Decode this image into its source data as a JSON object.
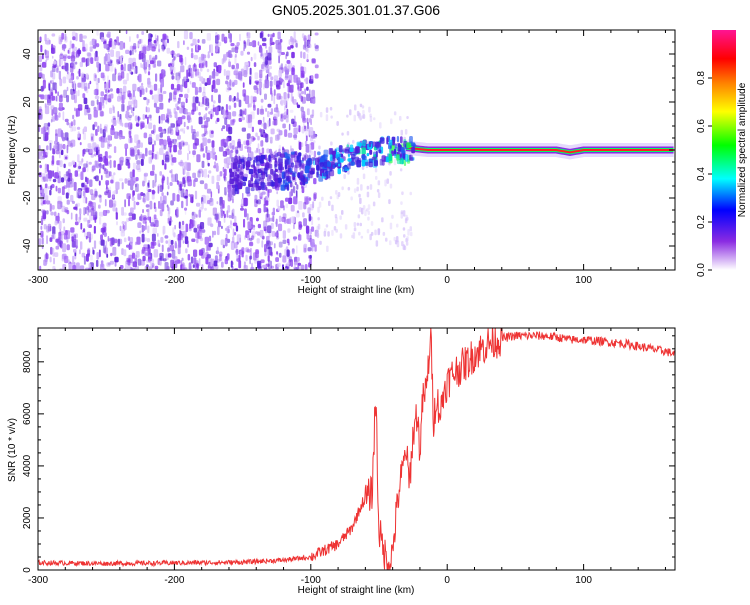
{
  "page": {
    "title": "GN05.2025.301.01.37.G06"
  },
  "chart_data": [
    {
      "type": "heatmap",
      "title": "GN05.2025.301.01.37.G06",
      "xlabel": "Height of straight line (km)",
      "ylabel": "Frequency (Hz)",
      "xlim": [
        -300,
        167
      ],
      "ylim": [
        -50,
        50
      ],
      "xticks": [
        -300,
        -200,
        -100,
        0,
        100
      ],
      "yticks": [
        -40,
        -20,
        0,
        20,
        40
      ],
      "colorbar": {
        "label": "Normalized spectral amplitude",
        "range": [
          0,
          1
        ],
        "ticks": [
          0.0,
          0.2,
          0.4,
          0.6,
          0.8
        ],
        "stops": [
          "#ffffff",
          "#8a2be2",
          "#0000ff",
          "#00ffff",
          "#00ff00",
          "#ffff00",
          "#ff8000",
          "#ff0000",
          "#ff1493"
        ]
      },
      "ridge": {
        "x": [
          -300,
          -150,
          -120,
          -100,
          -80,
          -60,
          -45,
          -30,
          -15,
          0,
          50,
          80,
          90,
          100,
          167
        ],
        "y": [
          -10,
          -9,
          -8,
          -6,
          -3,
          0,
          1,
          1,
          0,
          0,
          0,
          0,
          -1,
          0,
          0
        ]
      },
      "noise_region": {
        "x_start": -300,
        "x_end": -97
      }
    },
    {
      "type": "line",
      "xlabel": "Height of straight line (km)",
      "ylabel": "SNR (10 * v/v)",
      "xlim": [
        -300,
        167
      ],
      "ylim": [
        0,
        9300
      ],
      "xticks": [
        -300,
        -200,
        -100,
        0,
        100
      ],
      "yticks": [
        0,
        2000,
        4000,
        6000,
        8000
      ],
      "color": "#ee3333",
      "series": [
        {
          "x": [
            -300,
            -250,
            -200,
            -150,
            -120,
            -100,
            -90,
            -80,
            -70,
            -62,
            -58,
            -55,
            -53,
            -52,
            -51,
            -50,
            -48,
            -45,
            -42,
            -40,
            -38,
            -35,
            -32,
            -30,
            -28,
            -25,
            -22,
            -20,
            -18,
            -15,
            -13,
            -12,
            -11,
            -10,
            -8,
            -5,
            -2,
            0,
            5,
            10,
            15,
            20,
            25,
            30,
            40,
            50,
            60,
            70,
            80,
            90,
            100,
            110,
            120,
            130,
            140,
            150,
            160,
            167
          ],
          "y": [
            280,
            250,
            270,
            300,
            380,
            500,
            750,
            1000,
            1600,
            2600,
            2800,
            3000,
            6000,
            6500,
            3200,
            1600,
            1000,
            500,
            300,
            700,
            1800,
            3200,
            4000,
            4700,
            3200,
            5200,
            6100,
            4500,
            6500,
            7000,
            8500,
            8800,
            7500,
            5700,
            6700,
            6000,
            7000,
            7200,
            7600,
            7800,
            8000,
            8300,
            8500,
            8700,
            8900,
            9000,
            9000,
            9000,
            8950,
            8850,
            8850,
            8800,
            8750,
            8700,
            8600,
            8500,
            8400,
            8300
          ]
        }
      ]
    }
  ]
}
